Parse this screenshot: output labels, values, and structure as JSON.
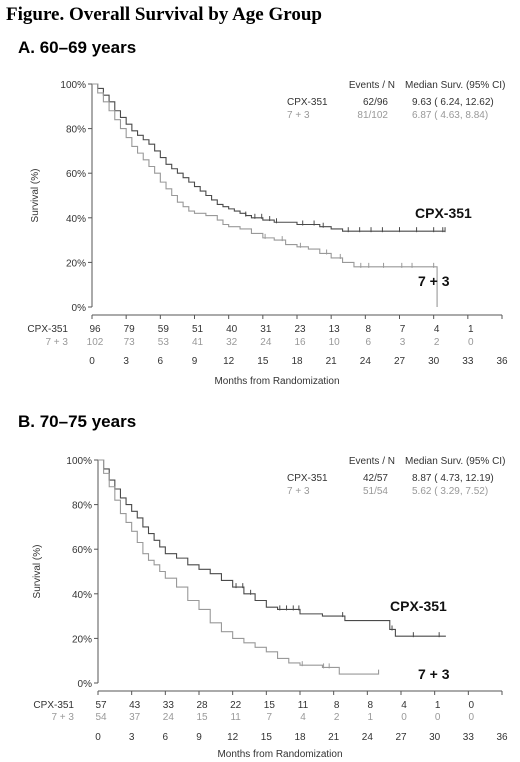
{
  "figure_title": "Figure. Overall Survival by Age Group",
  "colors": {
    "cpx": "#4a4a4a",
    "seven3": "#999999",
    "axis": "#555555"
  },
  "chart_data": [
    {
      "type": "line",
      "subtype": "kaplan-meier",
      "panel_label": "A.  60–69 years",
      "xlabel": "Months from Randomization",
      "ylabel": "Survival (%)",
      "xlim": [
        0,
        36
      ],
      "ylim": [
        0,
        100
      ],
      "x_ticks": [
        "0",
        "3",
        "6",
        "9",
        "12",
        "15",
        "18",
        "21",
        "24",
        "27",
        "30",
        "33",
        "36"
      ],
      "y_ticks": [
        "0%",
        "20%",
        "40%",
        "60%",
        "80%",
        "100%"
      ],
      "table_headers": [
        "Events / N",
        "Median Surv. (95% CI)"
      ],
      "table_rows": [
        {
          "name": "CPX-351",
          "events": "62/96",
          "median": "9.63 ( 6.24, 12.62)"
        },
        {
          "name": "7 + 3",
          "events": "81/102",
          "median": "6.87 ( 4.63,  8.84)"
        }
      ],
      "curve_labels": [
        "CPX-351",
        "7 + 3"
      ],
      "at_risk_times": [
        0,
        3,
        6,
        9,
        12,
        15,
        18,
        21,
        24,
        27,
        30,
        33
      ],
      "at_risk": [
        {
          "name": "CPX-351",
          "values": [
            "96",
            "79",
            "59",
            "51",
            "40",
            "31",
            "23",
            "13",
            "8",
            "7",
            "4",
            "1"
          ]
        },
        {
          "name": "7 + 3",
          "values": [
            "102",
            "73",
            "53",
            "41",
            "32",
            "24",
            "16",
            "10",
            "6",
            "3",
            "2",
            "0"
          ]
        }
      ],
      "series": [
        {
          "name": "CPX-351",
          "points": [
            [
              0,
              100
            ],
            [
              0.5,
              98
            ],
            [
              1,
              95
            ],
            [
              1.5,
              92
            ],
            [
              2,
              88
            ],
            [
              2.5,
              85
            ],
            [
              3,
              82
            ],
            [
              3.5,
              79
            ],
            [
              4,
              77
            ],
            [
              4.5,
              75
            ],
            [
              5,
              73
            ],
            [
              5.5,
              70
            ],
            [
              6,
              67
            ],
            [
              6.5,
              64
            ],
            [
              7,
              62
            ],
            [
              7.5,
              60
            ],
            [
              8,
              58
            ],
            [
              8.5,
              56
            ],
            [
              9,
              54
            ],
            [
              9.5,
              52
            ],
            [
              10,
              50
            ],
            [
              10.5,
              48
            ],
            [
              11,
              46
            ],
            [
              11.5,
              45
            ],
            [
              12,
              44
            ],
            [
              12.5,
              43
            ],
            [
              13,
              42
            ],
            [
              13.5,
              41
            ],
            [
              14,
              40
            ],
            [
              15,
              39
            ],
            [
              16,
              38
            ],
            [
              17,
              38
            ],
            [
              18,
              37
            ],
            [
              19,
              37
            ],
            [
              20,
              36
            ],
            [
              21,
              35
            ],
            [
              22,
              34
            ],
            [
              31,
              34
            ]
          ],
          "censor_x": [
            13.5,
            14.3,
            14.9,
            15.6,
            16.2,
            18.5,
            19.5,
            20.3,
            22.5,
            23.5,
            24.5,
            25.5,
            27,
            28.5,
            30,
            30.8,
            31
          ]
        },
        {
          "name": "7 + 3",
          "points": [
            [
              0,
              100
            ],
            [
              0.5,
              96
            ],
            [
              1,
              92
            ],
            [
              1.5,
              88
            ],
            [
              2,
              84
            ],
            [
              2.5,
              80
            ],
            [
              3,
              76
            ],
            [
              3.5,
              72
            ],
            [
              4,
              69
            ],
            [
              4.5,
              66
            ],
            [
              5,
              63
            ],
            [
              5.5,
              60
            ],
            [
              6,
              56
            ],
            [
              6.5,
              53
            ],
            [
              7,
              50
            ],
            [
              7.5,
              47
            ],
            [
              8,
              45
            ],
            [
              8.5,
              43
            ],
            [
              9,
              42
            ],
            [
              10,
              41
            ],
            [
              11,
              39
            ],
            [
              11.5,
              37
            ],
            [
              12,
              36
            ],
            [
              13,
              35
            ],
            [
              14,
              33
            ],
            [
              15,
              31
            ],
            [
              16,
              30
            ],
            [
              17,
              28
            ],
            [
              18,
              27
            ],
            [
              19,
              26
            ],
            [
              20,
              24
            ],
            [
              21,
              22
            ],
            [
              22,
              20
            ],
            [
              23,
              18
            ],
            [
              30,
              18
            ],
            [
              30.3,
              0
            ]
          ],
          "censor_x": [
            15.2,
            16.7,
            18.3,
            20.6,
            21.8,
            23.6,
            24.3,
            25.6,
            27.2,
            28.1,
            30
          ]
        }
      ]
    },
    {
      "type": "line",
      "subtype": "kaplan-meier",
      "panel_label": "B.  70–75 years",
      "xlabel": "Months from Randomization",
      "ylabel": "Survival (%)",
      "xlim": [
        0,
        36
      ],
      "ylim": [
        0,
        100
      ],
      "x_ticks": [
        "0",
        "3",
        "6",
        "9",
        "12",
        "15",
        "18",
        "21",
        "24",
        "27",
        "30",
        "33",
        "36"
      ],
      "y_ticks": [
        "0%",
        "20%",
        "40%",
        "60%",
        "80%",
        "100%"
      ],
      "table_headers": [
        "Events / N",
        "Median Surv. (95% CI)"
      ],
      "table_rows": [
        {
          "name": "CPX-351",
          "events": "42/57",
          "median": "8.87 ( 4.73, 12.19)"
        },
        {
          "name": "7 + 3",
          "events": "51/54",
          "median": "5.62 ( 3.29,  7.52)"
        }
      ],
      "curve_labels": [
        "CPX-351",
        "7 + 3"
      ],
      "at_risk_times": [
        0,
        3,
        6,
        9,
        12,
        15,
        18,
        21,
        24,
        27,
        30,
        33
      ],
      "at_risk": [
        {
          "name": "CPX-351",
          "values": [
            "57",
            "43",
            "33",
            "28",
            "22",
            "15",
            "11",
            "8",
            "8",
            "4",
            "1",
            "0"
          ]
        },
        {
          "name": "7 + 3",
          "values": [
            "54",
            "37",
            "24",
            "15",
            "11",
            "7",
            "4",
            "2",
            "1",
            "0",
            "0",
            "0"
          ]
        }
      ],
      "series": [
        {
          "name": "CPX-351",
          "points": [
            [
              0,
              100
            ],
            [
              0.5,
              96
            ],
            [
              1,
              91
            ],
            [
              1.5,
              87
            ],
            [
              2,
              83
            ],
            [
              2.5,
              80
            ],
            [
              3,
              77
            ],
            [
              3.5,
              74
            ],
            [
              4,
              70
            ],
            [
              4.5,
              67
            ],
            [
              5,
              64
            ],
            [
              5.5,
              61
            ],
            [
              6,
              58
            ],
            [
              7,
              56
            ],
            [
              8,
              53
            ],
            [
              9,
              51
            ],
            [
              10,
              49
            ],
            [
              11,
              46
            ],
            [
              12,
              43
            ],
            [
              13,
              40
            ],
            [
              14,
              37
            ],
            [
              15,
              34
            ],
            [
              16,
              33
            ],
            [
              17,
              33
            ],
            [
              18,
              31
            ],
            [
              20,
              30
            ],
            [
              22,
              28
            ],
            [
              25,
              28
            ],
            [
              26,
              24
            ],
            [
              26.5,
              21
            ],
            [
              31,
              21
            ]
          ],
          "censor_x": [
            12.3,
            12.9,
            13.6,
            16.2,
            16.8,
            17.4,
            17.9,
            21.8,
            26.2,
            28.1,
            30.4
          ]
        },
        {
          "name": "7 + 3",
          "points": [
            [
              0,
              100
            ],
            [
              0.5,
              94
            ],
            [
              1,
              88
            ],
            [
              1.5,
              82
            ],
            [
              2,
              76
            ],
            [
              2.5,
              72
            ],
            [
              3,
              68
            ],
            [
              3.5,
              63
            ],
            [
              4,
              58
            ],
            [
              4.5,
              55
            ],
            [
              5,
              53
            ],
            [
              5.5,
              50
            ],
            [
              6,
              47
            ],
            [
              7,
              43
            ],
            [
              8,
              37
            ],
            [
              9,
              33
            ],
            [
              10,
              27
            ],
            [
              11,
              23
            ],
            [
              12,
              20
            ],
            [
              13,
              18
            ],
            [
              14,
              16
            ],
            [
              15,
              14
            ],
            [
              16,
              11
            ],
            [
              17,
              9
            ],
            [
              18,
              8
            ],
            [
              19,
              8
            ],
            [
              20,
              7
            ],
            [
              21,
              7
            ],
            [
              21.5,
              4
            ],
            [
              25,
              4
            ],
            [
              25,
              6
            ]
          ],
          "censor_x": [
            18.2,
            20.1,
            20.6
          ]
        }
      ]
    }
  ]
}
